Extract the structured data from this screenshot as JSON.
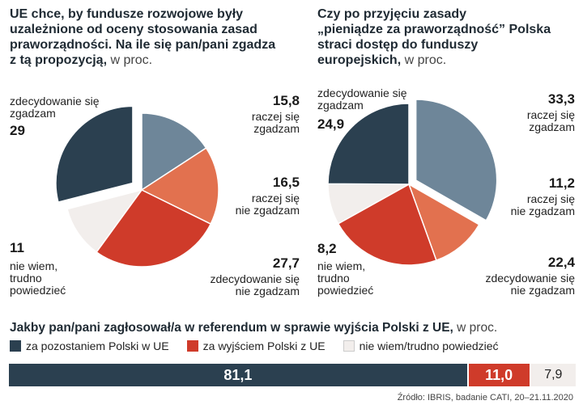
{
  "left_chart": {
    "title_lines": [
      "UE chce, by fundusze rozwojowe były",
      "uzależnione od oceny stosowania zasad",
      "praworządności. Na ile się pan/pani zgadza"
    ],
    "title_last": "z tą propozycją,",
    "unit": " w proc."
  },
  "right_chart": {
    "title_lines": [
      "Czy po przyjęciu zasady",
      "„pieniądze za praworządność” Polska",
      "straci dostęp do funduszy"
    ],
    "title_last": "europejskich,",
    "unit": " w proc."
  },
  "bottom": {
    "title": "Jakby pan/pani zagłosował/a w referendum w sprawie wyjścia Polski z UE,",
    "unit": " w proc."
  },
  "source": "Źródło: IBRIS, badanie CATI, 20–21.11.2020",
  "colors": {
    "dark": "#2b4050",
    "steel": "#6e8699",
    "orange": "#e2714f",
    "red": "#cf3b2a",
    "white": "#f2eeec"
  },
  "chart_data": [
    {
      "type": "pie",
      "slices": [
        {
          "value": 15.8,
          "number": "15,8",
          "label_lines": [
            "raczej się",
            "zgadzam"
          ],
          "color": "#6e8699"
        },
        {
          "value": 16.5,
          "number": "16,5",
          "label_lines": [
            "raczej się",
            "nie zgadzam"
          ],
          "color": "#e2714f"
        },
        {
          "value": 27.7,
          "number": "27,7",
          "label_lines": [
            "zdecydowanie się",
            "nie zgadzam"
          ],
          "color": "#cf3b2a"
        },
        {
          "value": 11,
          "number": "11",
          "label_lines": [
            "nie wiem,",
            "trudno",
            "powiedzieć"
          ],
          "color": "#f2eeec"
        },
        {
          "value": 29,
          "number": "29",
          "label_lines": [
            "zdecydowanie się",
            "zgadzam"
          ],
          "color": "#2b4050"
        }
      ]
    },
    {
      "type": "pie",
      "slices": [
        {
          "value": 33.3,
          "number": "33,3",
          "label_lines": [
            "raczej się",
            "zgadzam"
          ],
          "color": "#6e8699"
        },
        {
          "value": 11.2,
          "number": "11,2",
          "label_lines": [
            "raczej się",
            "nie zgadzam"
          ],
          "color": "#e2714f"
        },
        {
          "value": 22.4,
          "number": "22,4",
          "label_lines": [
            "zdecydowanie się",
            "nie zgadzam"
          ],
          "color": "#cf3b2a"
        },
        {
          "value": 8.2,
          "number": "8,2",
          "label_lines": [
            "nie wiem,",
            "trudno",
            "powiedzieć"
          ],
          "color": "#f2eeec"
        },
        {
          "value": 24.9,
          "number": "24,9",
          "label_lines": [
            "zdecydowanie się",
            "zgadzam"
          ],
          "color": "#2b4050"
        }
      ]
    },
    {
      "type": "bar",
      "categories": [
        "za pozostaniem Polski w UE",
        "za wyjściem Polski z UE",
        "nie wiem/trudno powiedzieć"
      ],
      "values": [
        81.1,
        11.0,
        7.9
      ],
      "value_labels": [
        "81,1",
        "11,0",
        "7,9"
      ],
      "colors": [
        "#2b4050",
        "#cf3b2a",
        "#f2eeec"
      ]
    }
  ]
}
